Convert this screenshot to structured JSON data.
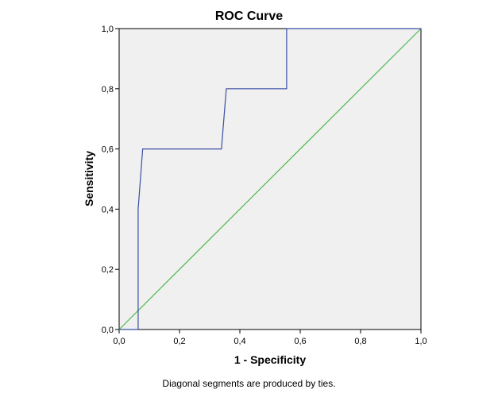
{
  "chart_data": {
    "type": "line",
    "title": "ROC Curve",
    "xlabel": "1 - Specificity",
    "ylabel": "Sensitivity",
    "xlim": [
      0,
      1
    ],
    "ylim": [
      0,
      1
    ],
    "xticks": [
      "0,0",
      "0,2",
      "0,4",
      "0,6",
      "0,8",
      "1,0"
    ],
    "yticks": [
      "0,0",
      "0,2",
      "0,4",
      "0,6",
      "0,8",
      "1,0"
    ],
    "grid": false,
    "series": [
      {
        "color": "#3a4fa3",
        "points": [
          [
            0.0,
            0.0
          ],
          [
            0.063,
            0.0
          ],
          [
            0.063,
            0.4
          ],
          [
            0.078,
            0.6
          ],
          [
            0.339,
            0.6
          ],
          [
            0.355,
            0.8
          ],
          [
            0.555,
            0.8
          ],
          [
            0.555,
            1.0
          ],
          [
            1.0,
            1.0
          ]
        ]
      },
      {
        "color": "#4db84d",
        "points": [
          [
            0,
            0
          ],
          [
            1,
            1
          ]
        ]
      }
    ],
    "plot_background": "#f0f0f0"
  },
  "footnote": "Diagonal segments are produced by ties."
}
